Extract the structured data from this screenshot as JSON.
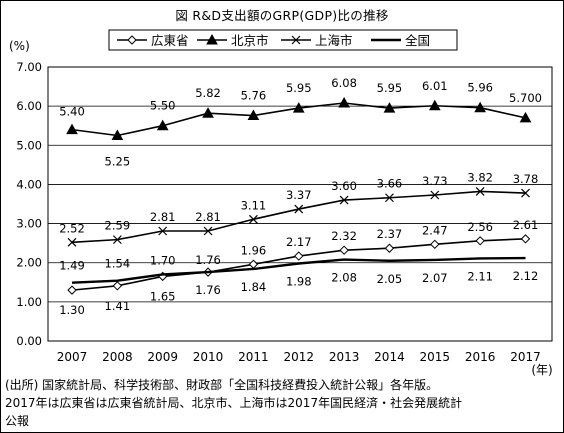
{
  "figure": {
    "title": "図 R&D支出額のGRP(GDP)比の推移"
  },
  "chart_data": {
    "type": "line",
    "ylabel": "(%)",
    "xlabel": "(年)",
    "ylim": [
      0,
      7
    ],
    "yticks": [
      "0.00",
      "1.00",
      "2.00",
      "3.00",
      "4.00",
      "5.00",
      "6.00",
      "7.00"
    ],
    "categories": [
      "2007",
      "2008",
      "2009",
      "2010",
      "2011",
      "2012",
      "2013",
      "2014",
      "2015",
      "2016",
      "2017"
    ],
    "grid": "horizontal",
    "legend_position": "top",
    "series": [
      {
        "name": "広東省",
        "marker": "diamond",
        "values": [
          1.3,
          1.41,
          1.65,
          1.76,
          1.96,
          2.17,
          2.32,
          2.37,
          2.47,
          2.56,
          2.61
        ],
        "labels": [
          "1.30",
          "1.41",
          "1.65",
          "1.76",
          "1.96",
          "2.17",
          "2.32",
          "2.37",
          "2.47",
          "2.56",
          "2.61"
        ]
      },
      {
        "name": "北京市",
        "marker": "triangle",
        "values": [
          5.4,
          5.25,
          5.5,
          5.82,
          5.76,
          5.95,
          6.08,
          5.95,
          6.01,
          5.96,
          5.7
        ],
        "labels": [
          "5.40",
          "5.25",
          "5.50",
          "5.82",
          "5.76",
          "5.95",
          "6.08",
          "5.95",
          "6.01",
          "5.96",
          "5.700"
        ]
      },
      {
        "name": "上海市",
        "marker": "x",
        "values": [
          2.52,
          2.59,
          2.81,
          2.81,
          3.11,
          3.37,
          3.6,
          3.66,
          3.73,
          3.82,
          3.78
        ],
        "labels": [
          "2.52",
          "2.59",
          "2.81",
          "2.81",
          "3.11",
          "3.37",
          "3.60",
          "3.66",
          "3.73",
          "3.82",
          "3.78"
        ]
      },
      {
        "name": "全国",
        "marker": "none",
        "values": [
          1.49,
          1.54,
          1.7,
          1.76,
          1.84,
          1.98,
          2.08,
          2.05,
          2.07,
          2.11,
          2.12
        ],
        "labels": [
          "1.49",
          "1.54",
          "1.70",
          "1.76",
          "1.84",
          "1.98",
          "2.08",
          "2.05",
          "2.07",
          "2.11",
          "2.12"
        ]
      }
    ]
  },
  "source": {
    "line1": "(出所) 国家統計局、科学技術部、財政部「全国科技経費投入統計公報」各年版。",
    "line2": "2017年は広東省は広東省統計局、北京市、上海市は2017年国民経済・社会発展統計",
    "line3": "公報"
  }
}
